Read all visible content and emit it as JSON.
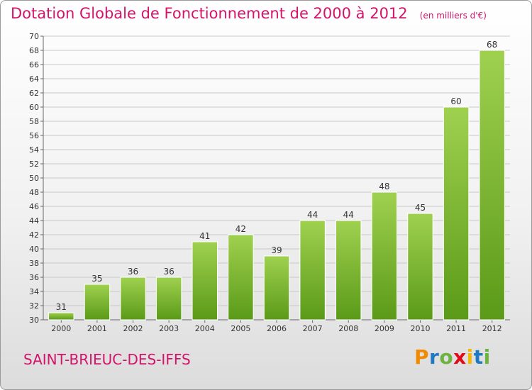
{
  "title": "Dotation Globale de Fonctionnement de 2000 à 2012",
  "subtitle": "(en milliers d'€)",
  "commune": "SAINT-BRIEUC-DES-IFFS",
  "logo": {
    "letters": [
      "P",
      "r",
      "o",
      "x",
      "i",
      "t",
      "i"
    ],
    "colors": [
      "#f08a00",
      "#1f7bc1",
      "#6db33f",
      "#e20a17",
      "#f5b800",
      "#1f7bc1",
      "#6db33f"
    ]
  },
  "colors": {
    "title": "#d2146b",
    "bar_light": "#9fd14f",
    "bar_dark": "#5a9a18"
  },
  "chart_data": {
    "type": "bar",
    "title": "Dotation Globale de Fonctionnement de 2000 à 2012",
    "subtitle": "(en milliers d'€)",
    "categories": [
      "2000",
      "2001",
      "2002",
      "2003",
      "2004",
      "2005",
      "2006",
      "2007",
      "2008",
      "2009",
      "2010",
      "2011",
      "2012"
    ],
    "values": [
      31,
      35,
      36,
      36,
      41,
      42,
      39,
      44,
      44,
      48,
      45,
      60,
      68
    ],
    "xlabel": "",
    "ylabel": "",
    "ylim": [
      30,
      70
    ],
    "yticks": [
      30,
      32,
      34,
      36,
      38,
      40,
      42,
      44,
      46,
      48,
      50,
      52,
      54,
      56,
      58,
      60,
      62,
      64,
      66,
      68,
      70
    ],
    "grid": true,
    "legend": "none"
  }
}
